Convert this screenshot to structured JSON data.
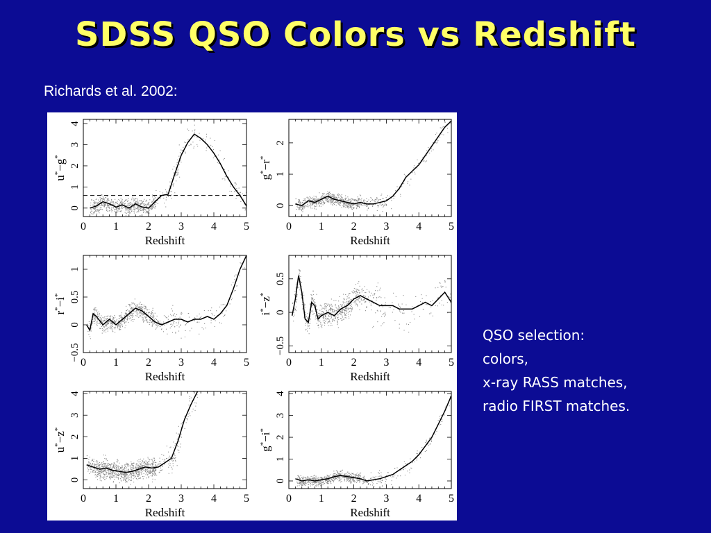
{
  "slide": {
    "title": "SDSS QSO Colors vs Redshift",
    "citation": "Richards et al. 2002:",
    "notes": [
      "QSO selection:",
      "colors,",
      "x-ray RASS matches,",
      "radio FIRST matches."
    ],
    "colors": {
      "background": "#0c0c94",
      "title": "#ffff66",
      "text": "#ffffff"
    }
  },
  "chart_data": [
    {
      "type": "scatter",
      "ylabel_parts": {
        "a": "u",
        "b": "g"
      },
      "xlabel": "Redshift",
      "xlim": [
        0,
        5
      ],
      "ylim": [
        -0.4,
        4.2
      ],
      "xticks": [
        0,
        1,
        2,
        3,
        4,
        5
      ],
      "yticks": [
        0,
        1,
        2,
        3,
        4
      ],
      "reference_line": {
        "y": 0.6,
        "style": "dashed"
      },
      "median": {
        "x": [
          0.2,
          0.4,
          0.6,
          0.8,
          1.0,
          1.2,
          1.4,
          1.6,
          1.8,
          2.0,
          2.2,
          2.4,
          2.6,
          2.8,
          3.0,
          3.2,
          3.4,
          3.6,
          3.8,
          4.0,
          4.2,
          4.4,
          4.6,
          4.8,
          5.0
        ],
        "y": [
          0.0,
          0.1,
          0.3,
          0.2,
          0.05,
          0.15,
          0.0,
          0.2,
          0.05,
          0.0,
          0.3,
          0.6,
          0.65,
          1.6,
          2.5,
          3.1,
          3.5,
          3.3,
          3.0,
          2.6,
          2.1,
          1.5,
          1.0,
          0.6,
          0.1
        ]
      },
      "scatter_spread": 0.35
    },
    {
      "type": "scatter",
      "ylabel_parts": {
        "a": "g",
        "b": "r"
      },
      "xlabel": "Redshift",
      "xlim": [
        0,
        5
      ],
      "ylim": [
        -0.35,
        2.75
      ],
      "xticks": [
        0,
        1,
        2,
        3,
        4,
        5
      ],
      "yticks": [
        0,
        1,
        2
      ],
      "median": {
        "x": [
          0.2,
          0.4,
          0.6,
          0.8,
          1.0,
          1.2,
          1.4,
          1.6,
          1.8,
          2.0,
          2.2,
          2.4,
          2.6,
          2.8,
          3.0,
          3.2,
          3.4,
          3.6,
          3.8,
          4.0,
          4.2,
          4.4,
          4.6,
          4.8,
          5.0
        ],
        "y": [
          0.05,
          0.0,
          0.15,
          0.1,
          0.2,
          0.3,
          0.2,
          0.15,
          0.1,
          0.05,
          0.1,
          0.05,
          0.05,
          0.1,
          0.15,
          0.3,
          0.55,
          0.9,
          1.1,
          1.3,
          1.6,
          1.9,
          2.2,
          2.5,
          2.7
        ]
      },
      "scatter_spread": 0.18
    },
    {
      "type": "scatter",
      "ylabel_parts": {
        "a": "r",
        "b": "i"
      },
      "xlabel": "Redshift",
      "xlim": [
        0,
        5
      ],
      "ylim": [
        -0.5,
        1.25
      ],
      "xticks": [
        0,
        1,
        2,
        3,
        4,
        5
      ],
      "yticks": [
        -0.5,
        0,
        0.5,
        1
      ],
      "median": {
        "x": [
          0.1,
          0.2,
          0.3,
          0.4,
          0.6,
          0.8,
          1.0,
          1.2,
          1.4,
          1.6,
          1.8,
          2.0,
          2.2,
          2.4,
          2.6,
          2.8,
          3.0,
          3.2,
          3.4,
          3.6,
          3.8,
          4.0,
          4.2,
          4.4,
          4.6,
          4.8,
          5.0
        ],
        "y": [
          0.0,
          -0.1,
          0.2,
          0.15,
          0.0,
          0.1,
          0.0,
          0.1,
          0.2,
          0.3,
          0.25,
          0.15,
          0.05,
          0.0,
          0.05,
          0.1,
          0.1,
          0.05,
          0.1,
          0.1,
          0.15,
          0.1,
          0.2,
          0.35,
          0.65,
          1.0,
          1.25
        ]
      },
      "scatter_spread": 0.15
    },
    {
      "type": "scatter",
      "ylabel_parts": {
        "a": "i",
        "b": "z"
      },
      "xlabel": "Redshift",
      "xlim": [
        0,
        5
      ],
      "ylim": [
        -0.6,
        0.85
      ],
      "xticks": [
        0,
        1,
        2,
        3,
        4,
        5
      ],
      "yticks": [
        -0.5,
        0,
        0.5
      ],
      "median": {
        "x": [
          0.1,
          0.2,
          0.3,
          0.4,
          0.5,
          0.6,
          0.7,
          0.8,
          0.9,
          1.0,
          1.2,
          1.4,
          1.6,
          1.8,
          2.0,
          2.2,
          2.4,
          2.6,
          2.8,
          3.0,
          3.2,
          3.4,
          3.6,
          3.8,
          4.0,
          4.2,
          4.4,
          4.6,
          4.8,
          5.0
        ],
        "y": [
          -0.05,
          0.2,
          0.55,
          0.3,
          -0.1,
          -0.15,
          0.15,
          0.1,
          -0.1,
          -0.05,
          0.0,
          -0.05,
          0.05,
          0.1,
          0.2,
          0.25,
          0.2,
          0.15,
          0.1,
          0.1,
          0.1,
          0.05,
          0.05,
          0.05,
          0.1,
          0.15,
          0.1,
          0.2,
          0.3,
          0.15
        ]
      },
      "scatter_spread": 0.18
    },
    {
      "type": "scatter",
      "ylabel_parts": {
        "a": "u",
        "b": "z"
      },
      "xlabel": "Redshift",
      "xlim": [
        0,
        5
      ],
      "ylim": [
        -0.4,
        4.1
      ],
      "xticks": [
        0,
        1,
        2,
        3,
        4,
        5
      ],
      "yticks": [
        0,
        1,
        2,
        3,
        4
      ],
      "median": {
        "x": [
          0.1,
          0.3,
          0.5,
          0.7,
          0.9,
          1.1,
          1.3,
          1.5,
          1.7,
          1.9,
          2.1,
          2.3,
          2.5,
          2.7,
          2.9,
          3.1,
          3.3,
          3.5
        ],
        "y": [
          0.7,
          0.6,
          0.5,
          0.55,
          0.45,
          0.4,
          0.35,
          0.4,
          0.5,
          0.6,
          0.55,
          0.6,
          0.8,
          1.0,
          1.8,
          2.8,
          3.5,
          4.1
        ]
      },
      "scatter_spread": 0.45
    },
    {
      "type": "scatter",
      "ylabel_parts": {
        "a": "g",
        "b": "i"
      },
      "xlabel": "Redshift",
      "xlim": [
        0,
        5
      ],
      "ylim": [
        -0.35,
        4.1
      ],
      "xticks": [
        0,
        1,
        2,
        3,
        4,
        5
      ],
      "yticks": [
        0,
        1,
        2,
        3,
        4
      ],
      "median": {
        "x": [
          0.2,
          0.4,
          0.6,
          0.8,
          1.0,
          1.2,
          1.4,
          1.6,
          1.8,
          2.0,
          2.2,
          2.4,
          2.6,
          2.8,
          3.0,
          3.2,
          3.4,
          3.6,
          3.8,
          4.0,
          4.2,
          4.4,
          4.6,
          4.8,
          5.0
        ],
        "y": [
          0.1,
          0.0,
          0.05,
          0.0,
          0.05,
          0.1,
          0.2,
          0.25,
          0.2,
          0.15,
          0.1,
          0.0,
          0.05,
          0.1,
          0.2,
          0.3,
          0.5,
          0.7,
          0.9,
          1.2,
          1.6,
          2.0,
          2.6,
          3.2,
          3.9
        ]
      },
      "scatter_spread": 0.22
    }
  ]
}
